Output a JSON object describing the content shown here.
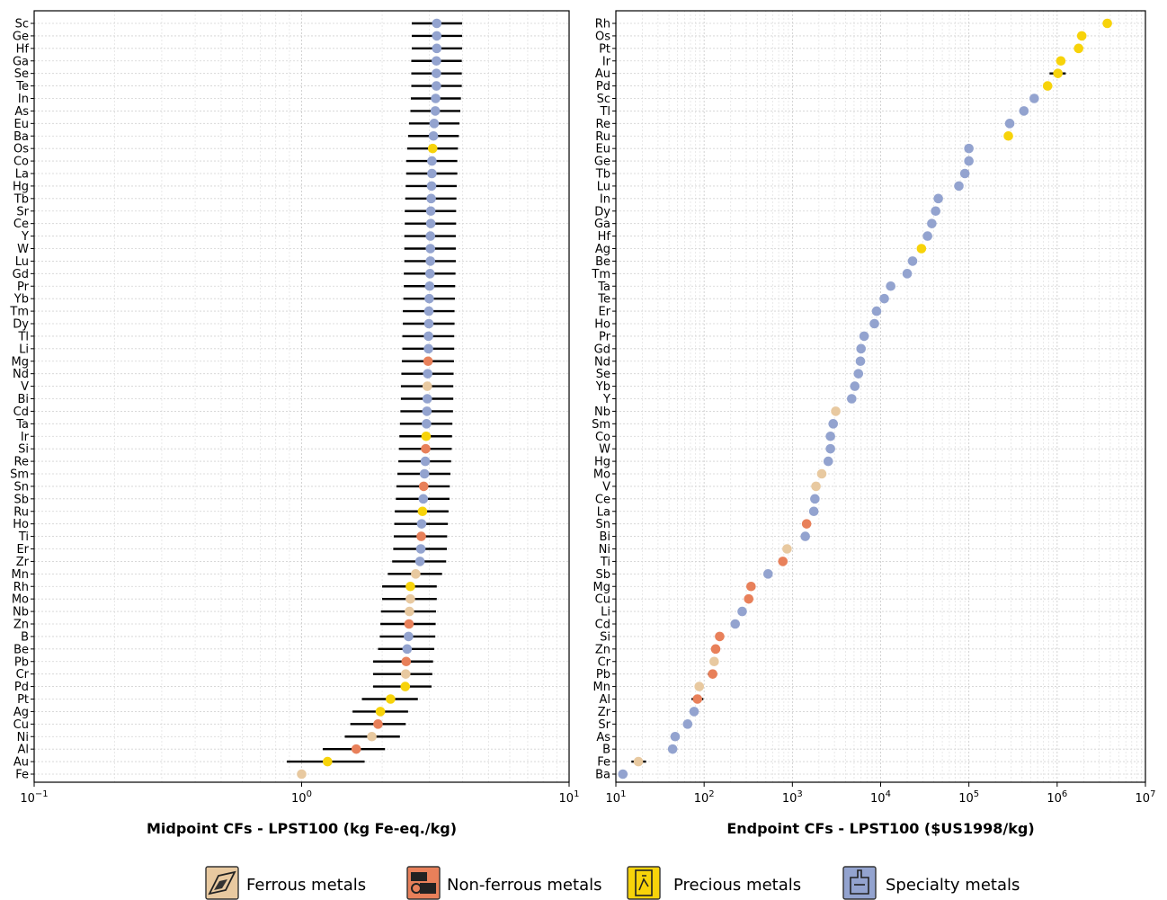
{
  "groups": {
    "F": {
      "name": "Ferrous metals",
      "color": "#E8C9A0",
      "icon": "ferrous-metals-icon"
    },
    "N": {
      "name": "Non-ferrous metals",
      "color": "#E8805A",
      "icon": "non-ferrous-metals-icon"
    },
    "P": {
      "name": "Precious metals",
      "color": "#F7D30A",
      "icon": "precious-metals-icon"
    },
    "S": {
      "name": "Specialty metals",
      "color": "#93A3CF",
      "icon": "specialty-metals-icon"
    }
  },
  "legend_order": [
    "F",
    "N",
    "P",
    "S"
  ],
  "chart_data": [
    {
      "type": "scatter",
      "orientation": "horizontal-dot-plot",
      "xlabel": "Midpoint CFs - LPST100 (kg Fe-eq./kg)",
      "xscale": "log",
      "xlim": [
        0.1,
        10
      ],
      "xticks": [
        {
          "value": 0.1,
          "base": "10",
          "exp": "−1"
        },
        {
          "value": 1,
          "base": "10",
          "exp": "0"
        },
        {
          "value": 10,
          "base": "10",
          "exp": "1"
        }
      ],
      "grid": true,
      "error_bars": true,
      "points": [
        {
          "label": "Sc",
          "group": "S",
          "value": 3.2,
          "low": 2.58,
          "high": 3.98
        },
        {
          "label": "Ge",
          "group": "S",
          "value": 3.2,
          "low": 2.58,
          "high": 3.98
        },
        {
          "label": "Hf",
          "group": "S",
          "value": 3.2,
          "low": 2.58,
          "high": 3.98
        },
        {
          "label": "Ga",
          "group": "S",
          "value": 3.19,
          "low": 2.57,
          "high": 3.97
        },
        {
          "label": "Se",
          "group": "S",
          "value": 3.19,
          "low": 2.57,
          "high": 3.97
        },
        {
          "label": "Te",
          "group": "S",
          "value": 3.19,
          "low": 2.57,
          "high": 3.97
        },
        {
          "label": "In",
          "group": "S",
          "value": 3.17,
          "low": 2.56,
          "high": 3.94
        },
        {
          "label": "As",
          "group": "S",
          "value": 3.16,
          "low": 2.55,
          "high": 3.92
        },
        {
          "label": "Eu",
          "group": "S",
          "value": 3.13,
          "low": 2.52,
          "high": 3.89
        },
        {
          "label": "Ba",
          "group": "S",
          "value": 3.11,
          "low": 2.5,
          "high": 3.87
        },
        {
          "label": "Os",
          "group": "P",
          "value": 3.09,
          "low": 2.48,
          "high": 3.84
        },
        {
          "label": "Co",
          "group": "S",
          "value": 3.07,
          "low": 2.46,
          "high": 3.82
        },
        {
          "label": "La",
          "group": "S",
          "value": 3.07,
          "low": 2.46,
          "high": 3.82
        },
        {
          "label": "Hg",
          "group": "S",
          "value": 3.06,
          "low": 2.45,
          "high": 3.8
        },
        {
          "label": "Tb",
          "group": "S",
          "value": 3.05,
          "low": 2.44,
          "high": 3.79
        },
        {
          "label": "Sr",
          "group": "S",
          "value": 3.04,
          "low": 2.43,
          "high": 3.78
        },
        {
          "label": "Ce",
          "group": "S",
          "value": 3.04,
          "low": 2.43,
          "high": 3.78
        },
        {
          "label": "Y",
          "group": "S",
          "value": 3.03,
          "low": 2.42,
          "high": 3.77
        },
        {
          "label": "W",
          "group": "S",
          "value": 3.03,
          "low": 2.42,
          "high": 3.77
        },
        {
          "label": "Lu",
          "group": "S",
          "value": 3.03,
          "low": 2.42,
          "high": 3.77
        },
        {
          "label": "Gd",
          "group": "S",
          "value": 3.02,
          "low": 2.41,
          "high": 3.76
        },
        {
          "label": "Pr",
          "group": "S",
          "value": 3.01,
          "low": 2.41,
          "high": 3.75
        },
        {
          "label": "Yb",
          "group": "S",
          "value": 3.0,
          "low": 2.4,
          "high": 3.74
        },
        {
          "label": "Tm",
          "group": "S",
          "value": 2.99,
          "low": 2.39,
          "high": 3.73
        },
        {
          "label": "Dy",
          "group": "S",
          "value": 2.99,
          "low": 2.39,
          "high": 3.73
        },
        {
          "label": "Tl",
          "group": "S",
          "value": 2.98,
          "low": 2.38,
          "high": 3.72
        },
        {
          "label": "Li",
          "group": "S",
          "value": 2.98,
          "low": 2.38,
          "high": 3.72
        },
        {
          "label": "Mg",
          "group": "N",
          "value": 2.97,
          "low": 2.37,
          "high": 3.71
        },
        {
          "label": "Nd",
          "group": "S",
          "value": 2.96,
          "low": 2.36,
          "high": 3.7
        },
        {
          "label": "V",
          "group": "F",
          "value": 2.95,
          "low": 2.35,
          "high": 3.69
        },
        {
          "label": "Bi",
          "group": "S",
          "value": 2.95,
          "low": 2.35,
          "high": 3.69
        },
        {
          "label": "Cd",
          "group": "S",
          "value": 2.94,
          "low": 2.34,
          "high": 3.68
        },
        {
          "label": "Ta",
          "group": "S",
          "value": 2.93,
          "low": 2.33,
          "high": 3.66
        },
        {
          "label": "Ir",
          "group": "P",
          "value": 2.92,
          "low": 2.32,
          "high": 3.65
        },
        {
          "label": "Si",
          "group": "N",
          "value": 2.91,
          "low": 2.31,
          "high": 3.64
        },
        {
          "label": "Re",
          "group": "S",
          "value": 2.9,
          "low": 2.3,
          "high": 3.62
        },
        {
          "label": "Sm",
          "group": "S",
          "value": 2.88,
          "low": 2.28,
          "high": 3.6
        },
        {
          "label": "Sn",
          "group": "N",
          "value": 2.86,
          "low": 2.26,
          "high": 3.58
        },
        {
          "label": "Sb",
          "group": "S",
          "value": 2.85,
          "low": 2.25,
          "high": 3.57
        },
        {
          "label": "Ru",
          "group": "P",
          "value": 2.83,
          "low": 2.23,
          "high": 3.54
        },
        {
          "label": "Ho",
          "group": "S",
          "value": 2.81,
          "low": 2.22,
          "high": 3.52
        },
        {
          "label": "Ti",
          "group": "N",
          "value": 2.8,
          "low": 2.21,
          "high": 3.5
        },
        {
          "label": "Er",
          "group": "S",
          "value": 2.79,
          "low": 2.2,
          "high": 3.49
        },
        {
          "label": "Zr",
          "group": "S",
          "value": 2.77,
          "low": 2.18,
          "high": 3.47
        },
        {
          "label": "Mn",
          "group": "F",
          "value": 2.67,
          "low": 2.1,
          "high": 3.35
        },
        {
          "label": "Rh",
          "group": "P",
          "value": 2.55,
          "low": 2.0,
          "high": 3.2
        },
        {
          "label": "Mo",
          "group": "F",
          "value": 2.55,
          "low": 2.0,
          "high": 3.2
        },
        {
          "label": "Nb",
          "group": "F",
          "value": 2.53,
          "low": 1.98,
          "high": 3.18
        },
        {
          "label": "Zn",
          "group": "N",
          "value": 2.52,
          "low": 1.97,
          "high": 3.17
        },
        {
          "label": "B",
          "group": "S",
          "value": 2.51,
          "low": 1.96,
          "high": 3.16
        },
        {
          "label": "Be",
          "group": "S",
          "value": 2.48,
          "low": 1.93,
          "high": 3.13
        },
        {
          "label": "Pb",
          "group": "N",
          "value": 2.46,
          "low": 1.85,
          "high": 3.1
        },
        {
          "label": "Cr",
          "group": "F",
          "value": 2.45,
          "low": 1.85,
          "high": 3.08
        },
        {
          "label": "Pd",
          "group": "P",
          "value": 2.44,
          "low": 1.85,
          "high": 3.06
        },
        {
          "label": "Pt",
          "group": "P",
          "value": 2.15,
          "low": 1.68,
          "high": 2.72
        },
        {
          "label": "Ag",
          "group": "P",
          "value": 1.97,
          "low": 1.55,
          "high": 2.5
        },
        {
          "label": "Cu",
          "group": "N",
          "value": 1.93,
          "low": 1.52,
          "high": 2.45
        },
        {
          "label": "Ni",
          "group": "F",
          "value": 1.83,
          "low": 1.45,
          "high": 2.33
        },
        {
          "label": "Al",
          "group": "N",
          "value": 1.6,
          "low": 1.2,
          "high": 2.05
        },
        {
          "label": "Au",
          "group": "P",
          "value": 1.25,
          "low": 0.88,
          "high": 1.72
        },
        {
          "label": "Fe",
          "group": "F",
          "value": 1.0,
          "low": 1.0,
          "high": 1.0
        }
      ]
    },
    {
      "type": "scatter",
      "orientation": "horizontal-dot-plot",
      "xlabel": "Endpoint CFs - LPST100 ($US1998/kg)",
      "xscale": "log",
      "xlim": [
        10,
        10000000
      ],
      "xticks": [
        {
          "value": 10,
          "base": "10",
          "exp": "1"
        },
        {
          "value": 100,
          "base": "10",
          "exp": "2"
        },
        {
          "value": 1000,
          "base": "10",
          "exp": "3"
        },
        {
          "value": 10000,
          "base": "10",
          "exp": "4"
        },
        {
          "value": 100000,
          "base": "10",
          "exp": "5"
        },
        {
          "value": 1000000,
          "base": "10",
          "exp": "6"
        },
        {
          "value": 10000000,
          "base": "10",
          "exp": "7"
        }
      ],
      "grid": true,
      "error_bars": true,
      "points": [
        {
          "label": "Rh",
          "group": "P",
          "value": 3700000
        },
        {
          "label": "Os",
          "group": "P",
          "value": 1900000
        },
        {
          "label": "Pt",
          "group": "P",
          "value": 1750000
        },
        {
          "label": "Ir",
          "group": "P",
          "value": 1100000
        },
        {
          "label": "Au",
          "group": "P",
          "value": 1020000,
          "low": 820000,
          "high": 1250000
        },
        {
          "label": "Pd",
          "group": "P",
          "value": 780000
        },
        {
          "label": "Sc",
          "group": "S",
          "value": 550000
        },
        {
          "label": "Tl",
          "group": "S",
          "value": 420000
        },
        {
          "label": "Re",
          "group": "S",
          "value": 290000
        },
        {
          "label": "Ru",
          "group": "P",
          "value": 280000
        },
        {
          "label": "Eu",
          "group": "S",
          "value": 100000
        },
        {
          "label": "Ge",
          "group": "S",
          "value": 100000
        },
        {
          "label": "Tb",
          "group": "S",
          "value": 90000
        },
        {
          "label": "Lu",
          "group": "S",
          "value": 77000
        },
        {
          "label": "In",
          "group": "S",
          "value": 45000
        },
        {
          "label": "Dy",
          "group": "S",
          "value": 42000
        },
        {
          "label": "Ga",
          "group": "S",
          "value": 38000
        },
        {
          "label": "Hf",
          "group": "S",
          "value": 34000
        },
        {
          "label": "Ag",
          "group": "P",
          "value": 29000
        },
        {
          "label": "Be",
          "group": "S",
          "value": 23000
        },
        {
          "label": "Tm",
          "group": "S",
          "value": 20000
        },
        {
          "label": "Ta",
          "group": "S",
          "value": 13000
        },
        {
          "label": "Te",
          "group": "S",
          "value": 11000
        },
        {
          "label": "Er",
          "group": "S",
          "value": 9000
        },
        {
          "label": "Ho",
          "group": "S",
          "value": 8500
        },
        {
          "label": "Pr",
          "group": "S",
          "value": 6500
        },
        {
          "label": "Gd",
          "group": "S",
          "value": 6000
        },
        {
          "label": "Nd",
          "group": "S",
          "value": 5900
        },
        {
          "label": "Se",
          "group": "S",
          "value": 5600
        },
        {
          "label": "Yb",
          "group": "S",
          "value": 5100
        },
        {
          "label": "Y",
          "group": "S",
          "value": 4700
        },
        {
          "label": "Nb",
          "group": "F",
          "value": 3100
        },
        {
          "label": "Sm",
          "group": "S",
          "value": 2900
        },
        {
          "label": "Co",
          "group": "S",
          "value": 2700
        },
        {
          "label": "W",
          "group": "S",
          "value": 2700
        },
        {
          "label": "Hg",
          "group": "S",
          "value": 2550
        },
        {
          "label": "Mo",
          "group": "F",
          "value": 2150
        },
        {
          "label": "V",
          "group": "F",
          "value": 1850
        },
        {
          "label": "Ce",
          "group": "S",
          "value": 1800
        },
        {
          "label": "La",
          "group": "S",
          "value": 1750
        },
        {
          "label": "Sn",
          "group": "N",
          "value": 1450
        },
        {
          "label": "Bi",
          "group": "S",
          "value": 1400
        },
        {
          "label": "Ni",
          "group": "F",
          "value": 870
        },
        {
          "label": "Ti",
          "group": "N",
          "value": 780
        },
        {
          "label": "Sb",
          "group": "S",
          "value": 530
        },
        {
          "label": "Mg",
          "group": "N",
          "value": 340
        },
        {
          "label": "Cu",
          "group": "N",
          "value": 320
        },
        {
          "label": "Li",
          "group": "S",
          "value": 270
        },
        {
          "label": "Cd",
          "group": "S",
          "value": 225
        },
        {
          "label": "Si",
          "group": "N",
          "value": 150
        },
        {
          "label": "Zn",
          "group": "N",
          "value": 135
        },
        {
          "label": "Cr",
          "group": "F",
          "value": 130
        },
        {
          "label": "Pb",
          "group": "N",
          "value": 125,
          "low": 110,
          "high": 140
        },
        {
          "label": "Mn",
          "group": "F",
          "value": 88
        },
        {
          "label": "Al",
          "group": "N",
          "value": 84,
          "low": 72,
          "high": 98
        },
        {
          "label": "Zr",
          "group": "S",
          "value": 77
        },
        {
          "label": "Sr",
          "group": "S",
          "value": 65
        },
        {
          "label": "As",
          "group": "S",
          "value": 47
        },
        {
          "label": "B",
          "group": "S",
          "value": 44
        },
        {
          "label": "Fe",
          "group": "F",
          "value": 18,
          "low": 15,
          "high": 22
        },
        {
          "label": "Ba",
          "group": "S",
          "value": 12
        }
      ]
    }
  ]
}
